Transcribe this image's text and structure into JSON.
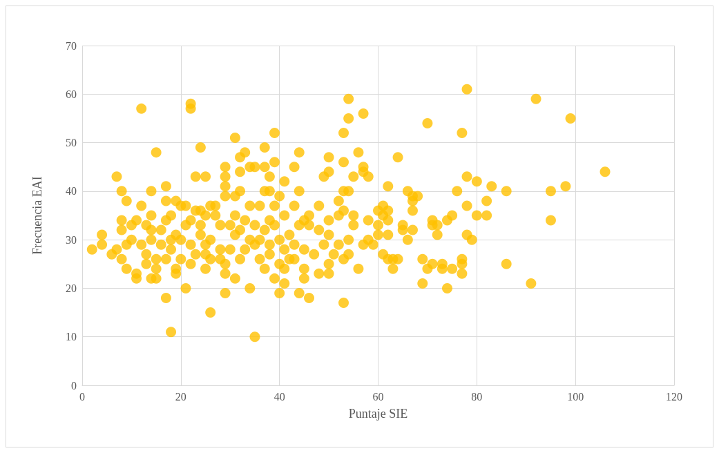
{
  "chart_data": {
    "type": "scatter",
    "xlabel": "Puntaje SIE",
    "ylabel": "Frecuencia EAI",
    "xlim": [
      0,
      120
    ],
    "xticks": [
      0,
      20,
      40,
      60,
      80,
      100,
      120
    ],
    "ylim": [
      0,
      70
    ],
    "yticks": [
      0,
      10,
      20,
      30,
      40,
      50,
      60,
      70
    ],
    "grid": true,
    "marker": "circle",
    "x": [
      2,
      4,
      4,
      6,
      7,
      7,
      8,
      8,
      8,
      8,
      9,
      9,
      9,
      10,
      10,
      11,
      11,
      11,
      12,
      12,
      12,
      13,
      13,
      13,
      14,
      14,
      14,
      14,
      14,
      15,
      15,
      15,
      15,
      16,
      16,
      17,
      17,
      17,
      17,
      17,
      18,
      18,
      18,
      18,
      19,
      19,
      19,
      19,
      20,
      20,
      20,
      21,
      21,
      21,
      22,
      22,
      22,
      22,
      22,
      23,
      23,
      23,
      24,
      24,
      24,
      24,
      25,
      25,
      25,
      25,
      25,
      26,
      26,
      26,
      26,
      27,
      27,
      28,
      28,
      28,
      29,
      29,
      29,
      29,
      29,
      29,
      29,
      30,
      30,
      31,
      31,
      31,
      31,
      31,
      32,
      32,
      32,
      32,
      32,
      33,
      33,
      33,
      34,
      34,
      34,
      34,
      35,
      35,
      35,
      35,
      36,
      36,
      36,
      37,
      37,
      37,
      37,
      37,
      38,
      38,
      38,
      38,
      38,
      39,
      39,
      39,
      39,
      39,
      40,
      40,
      40,
      40,
      41,
      41,
      41,
      41,
      41,
      42,
      42,
      43,
      43,
      43,
      43,
      44,
      44,
      44,
      44,
      45,
      45,
      45,
      45,
      46,
      46,
      46,
      47,
      48,
      48,
      48,
      49,
      49,
      50,
      50,
      50,
      50,
      50,
      50,
      51,
      52,
      52,
      52,
      53,
      53,
      53,
      53,
      53,
      53,
      54,
      54,
      54,
      54,
      54,
      55,
      55,
      55,
      56,
      56,
      57,
      57,
      57,
      57,
      58,
      58,
      58,
      59,
      60,
      60,
      60,
      61,
      61,
      61,
      62,
      62,
      62,
      62,
      62,
      63,
      63,
      64,
      64,
      65,
      65,
      66,
      66,
      67,
      67,
      67,
      67,
      68,
      69,
      69,
      70,
      70,
      71,
      71,
      71,
      72,
      72,
      73,
      73,
      74,
      74,
      75,
      75,
      76,
      77,
      77,
      77,
      77,
      78,
      78,
      78,
      78,
      79,
      80,
      80,
      82,
      82,
      83,
      86,
      86,
      91,
      92,
      95,
      95,
      98,
      99,
      106
    ],
    "series": [
      {
        "color": "#ffc000",
        "values": [
          28,
          31,
          29,
          27,
          43,
          28,
          40,
          34,
          32,
          26,
          38,
          29,
          24,
          33,
          30,
          23,
          22,
          34,
          57,
          37,
          29,
          33,
          27,
          25,
          40,
          35,
          32,
          30,
          22,
          48,
          26,
          24,
          22,
          32,
          29,
          41,
          38,
          34,
          26,
          18,
          11,
          35,
          30,
          28,
          38,
          31,
          24,
          23,
          37,
          30,
          26,
          33,
          20,
          37,
          58,
          57,
          34,
          29,
          25,
          43,
          36,
          27,
          49,
          36,
          31,
          33,
          43,
          35,
          29,
          27,
          24,
          37,
          30,
          26,
          15,
          37,
          35,
          33,
          28,
          26,
          45,
          43,
          41,
          39,
          25,
          23,
          19,
          33,
          28,
          51,
          39,
          35,
          31,
          22,
          47,
          44,
          40,
          32,
          26,
          48,
          34,
          28,
          45,
          37,
          30,
          20,
          45,
          33,
          29,
          10,
          37,
          30,
          26,
          49,
          45,
          40,
          32,
          24,
          43,
          40,
          34,
          29,
          27,
          52,
          46,
          37,
          33,
          22,
          39,
          30,
          25,
          19,
          42,
          35,
          28,
          24,
          21,
          31,
          26,
          45,
          37,
          29,
          26,
          48,
          40,
          33,
          19,
          34,
          28,
          24,
          22,
          35,
          33,
          18,
          27,
          37,
          32,
          23,
          43,
          29,
          47,
          44,
          34,
          31,
          25,
          23,
          27,
          38,
          35,
          29,
          52,
          46,
          40,
          36,
          26,
          17,
          59,
          55,
          40,
          30,
          27,
          43,
          35,
          33,
          48,
          24,
          56,
          45,
          44,
          29,
          43,
          34,
          30,
          29,
          36,
          33,
          31,
          37,
          35,
          27,
          41,
          36,
          34,
          31,
          26,
          26,
          24,
          47,
          26,
          33,
          32,
          40,
          30,
          39,
          38,
          36,
          32,
          39,
          26,
          21,
          54,
          24,
          34,
          33,
          25,
          33,
          31,
          25,
          24,
          34,
          20,
          35,
          24,
          40,
          52,
          26,
          25,
          23,
          61,
          43,
          37,
          31,
          30,
          42,
          35,
          38,
          35,
          41,
          40,
          25,
          21,
          59,
          40,
          34,
          41,
          55,
          44
        ]
      }
    ]
  }
}
